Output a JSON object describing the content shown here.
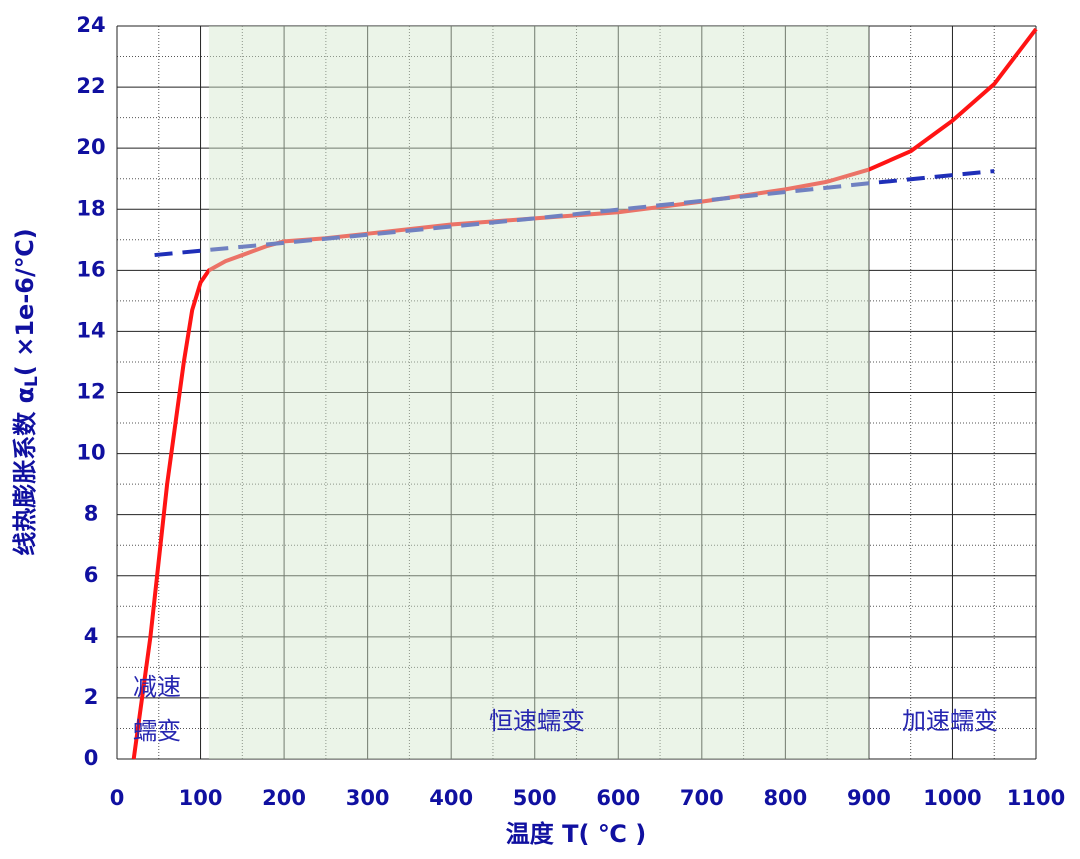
{
  "chart_data": {
    "type": "line",
    "xlabel": "温度  T( ℃ )",
    "ylabel": [
      "线热膨胀系数 α",
      "L",
      "( ×1e-6/℃)"
    ],
    "xlim": [
      0,
      1100
    ],
    "xticks": [
      0,
      100,
      200,
      300,
      400,
      500,
      600,
      700,
      800,
      900,
      1000,
      1100
    ],
    "ylim": [
      0,
      24
    ],
    "yticks": [
      0,
      2,
      4,
      6,
      8,
      10,
      12,
      14,
      16,
      18,
      20,
      22,
      24
    ],
    "grid": true,
    "minor_grid": true,
    "shaded_xrange": [
      110,
      900
    ],
    "shade_color": "#d2e6cc",
    "annotations": [
      [
        "减速",
        "蠕变"
      ],
      [
        "恒速蠕变"
      ],
      [
        "加速蠕变"
      ]
    ],
    "series": [
      {
        "color": "#ff1414",
        "style": "solid",
        "x": [
          20,
          30,
          40,
          50,
          60,
          70,
          80,
          90,
          100,
          110,
          130,
          150,
          180,
          200,
          250,
          300,
          400,
          500,
          600,
          700,
          800,
          850,
          900,
          950,
          1000,
          1050,
          1100
        ],
        "values": [
          0,
          2,
          4,
          6.5,
          9,
          11,
          13,
          14.7,
          15.6,
          16,
          16.3,
          16.5,
          16.8,
          16.95,
          17.05,
          17.2,
          17.5,
          17.7,
          17.9,
          18.25,
          18.65,
          18.9,
          19.3,
          19.9,
          20.9,
          22.1,
          23.9
        ]
      },
      {
        "color": "#1f2fb8",
        "style": "dashed",
        "x": [
          45,
          200,
          500,
          900,
          1050
        ],
        "values": [
          16.5,
          16.9,
          17.7,
          18.85,
          19.25
        ]
      }
    ]
  }
}
